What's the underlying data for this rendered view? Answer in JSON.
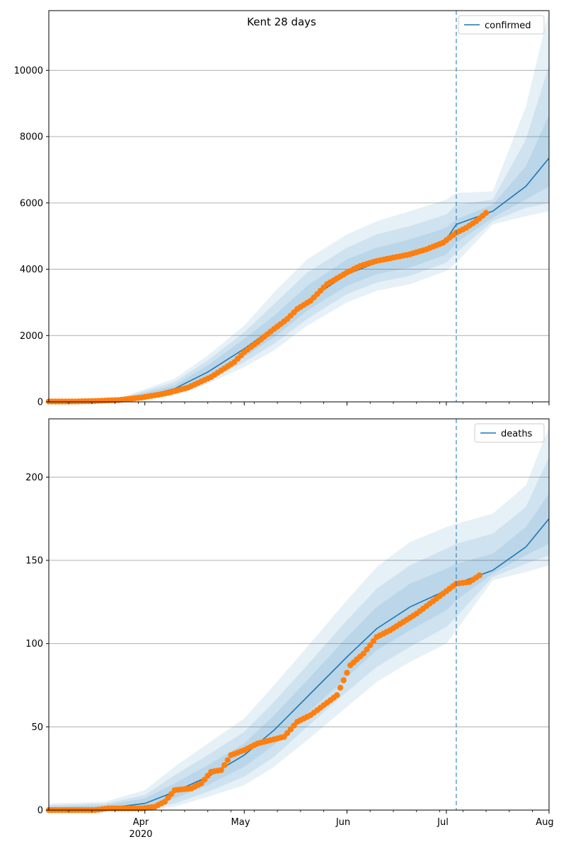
{
  "figure_title": "Kent 28 days",
  "colors": {
    "fit": "#1f77b4",
    "observed": "#ff7f0e",
    "band": "#1f77b4",
    "grid": "#b0b0b0",
    "forecast_line": "#1f77b4"
  },
  "x_axis": {
    "tick_labels": [
      "Apr",
      "May",
      "Jun",
      "Jul",
      "Aug"
    ],
    "year_label": "2020",
    "range": [
      "2020-03-03",
      "2020-08-01"
    ]
  },
  "forecast_start": "2020-07-04",
  "chart_data": [
    {
      "type": "line",
      "title": "Kent 28 days",
      "legend": "confirmed",
      "legend_position": "top-right",
      "grid": "horizontal",
      "ylim": [
        0,
        11800
      ],
      "yticks": [
        0,
        2000,
        4000,
        6000,
        8000,
        10000
      ],
      "ytick_labels": [
        "0",
        "2000",
        "4000",
        "6000",
        "8000",
        "10000"
      ],
      "fit": {
        "x": [
          "2020-03-03",
          "2020-03-15",
          "2020-03-25",
          "2020-04-01",
          "2020-04-10",
          "2020-04-20",
          "2020-05-01",
          "2020-05-10",
          "2020-05-20",
          "2020-06-01",
          "2020-06-10",
          "2020-06-20",
          "2020-07-01",
          "2020-07-04",
          "2020-07-15",
          "2020-07-25",
          "2020-08-01"
        ],
        "y": [
          10,
          20,
          70,
          170,
          400,
          900,
          1600,
          2250,
          3050,
          3850,
          4200,
          4450,
          4900,
          5350,
          5750,
          6500,
          7350
        ]
      },
      "bands": [
        {
          "x": [
            "2020-03-03",
            "2020-03-25",
            "2020-04-10",
            "2020-04-20",
            "2020-05-01",
            "2020-05-10",
            "2020-05-20",
            "2020-06-01",
            "2020-06-10",
            "2020-06-20",
            "2020-07-01",
            "2020-07-04",
            "2020-07-15",
            "2020-07-25",
            "2020-08-01"
          ],
          "low": [
            0,
            30,
            200,
            550,
            1050,
            1550,
            2300,
            3000,
            3350,
            3550,
            3950,
            4200,
            5350,
            5600,
            5750
          ],
          "high": [
            30,
            140,
            700,
            1400,
            2300,
            3300,
            4300,
            5050,
            5450,
            5750,
            6100,
            6300,
            6350,
            8900,
            11800
          ]
        },
        {
          "x": [
            "2020-03-03",
            "2020-03-25",
            "2020-04-10",
            "2020-04-20",
            "2020-05-01",
            "2020-05-10",
            "2020-05-20",
            "2020-06-01",
            "2020-06-10",
            "2020-06-20",
            "2020-07-01",
            "2020-07-04",
            "2020-07-15",
            "2020-07-25",
            "2020-08-01"
          ],
          "low": [
            0,
            40,
            260,
            650,
            1200,
            1750,
            2500,
            3250,
            3600,
            3800,
            4200,
            4500,
            5450,
            5850,
            6000
          ],
          "high": [
            25,
            120,
            600,
            1250,
            2100,
            2950,
            3900,
            4650,
            5050,
            5300,
            5650,
            5950,
            6100,
            7900,
            10150
          ]
        },
        {
          "x": [
            "2020-03-03",
            "2020-03-25",
            "2020-04-10",
            "2020-04-20",
            "2020-05-01",
            "2020-05-10",
            "2020-05-20",
            "2020-06-01",
            "2020-06-10",
            "2020-06-20",
            "2020-07-01",
            "2020-07-04",
            "2020-07-15",
            "2020-07-25",
            "2020-08-01"
          ],
          "low": [
            2,
            50,
            320,
            750,
            1350,
            1950,
            2750,
            3500,
            3850,
            4050,
            4450,
            4800,
            5550,
            6100,
            6500
          ],
          "high": [
            20,
            100,
            500,
            1100,
            1900,
            2600,
            3500,
            4300,
            4650,
            4900,
            5250,
            5500,
            5950,
            7100,
            8650
          ]
        }
      ],
      "observed": {
        "x": [
          "2020-03-03",
          "2020-03-10",
          "2020-03-17",
          "2020-03-24",
          "2020-03-31",
          "2020-04-07",
          "2020-04-14",
          "2020-04-21",
          "2020-04-28",
          "2020-05-01",
          "2020-05-05",
          "2020-05-10",
          "2020-05-14",
          "2020-05-17",
          "2020-05-21",
          "2020-05-26",
          "2020-06-01",
          "2020-06-05",
          "2020-06-10",
          "2020-06-15",
          "2020-06-20",
          "2020-06-25",
          "2020-06-30",
          "2020-07-04",
          "2020-07-07",
          "2020-07-10",
          "2020-07-13"
        ],
        "y": [
          10,
          12,
          25,
          55,
          130,
          250,
          430,
          750,
          1200,
          1500,
          1800,
          2200,
          2500,
          2800,
          3050,
          3550,
          3900,
          4100,
          4250,
          4350,
          4450,
          4600,
          4800,
          5100,
          5250,
          5450,
          5700
        ]
      }
    },
    {
      "type": "line",
      "title": "",
      "legend": "deaths",
      "legend_position": "top-right",
      "grid": "horizontal",
      "ylim": [
        0,
        235
      ],
      "yticks": [
        0,
        50,
        100,
        150,
        200
      ],
      "ytick_labels": [
        "0",
        "50",
        "100",
        "150",
        "200"
      ],
      "fit": {
        "x": [
          "2020-03-03",
          "2020-03-20",
          "2020-04-01",
          "2020-04-10",
          "2020-04-20",
          "2020-05-01",
          "2020-05-10",
          "2020-05-20",
          "2020-06-01",
          "2020-06-10",
          "2020-06-20",
          "2020-07-01",
          "2020-07-04",
          "2020-07-15",
          "2020-07-25",
          "2020-08-01"
        ],
        "y": [
          0,
          1,
          4,
          11,
          20,
          33,
          48,
          68,
          92,
          109,
          122,
          132,
          136,
          144,
          158,
          175
        ]
      },
      "bands": [
        {
          "x": [
            "2020-03-03",
            "2020-03-20",
            "2020-04-01",
            "2020-04-10",
            "2020-04-20",
            "2020-05-01",
            "2020-05-10",
            "2020-05-20",
            "2020-06-01",
            "2020-06-10",
            "2020-06-20",
            "2020-07-01",
            "2020-07-04",
            "2020-07-15",
            "2020-07-25",
            "2020-08-01"
          ],
          "low": [
            0,
            0,
            0,
            2,
            8,
            15,
            26,
            42,
            62,
            77,
            89,
            100,
            108,
            138,
            143,
            147
          ],
          "high": [
            4,
            5,
            12,
            26,
            40,
            55,
            75,
            98,
            126,
            146,
            161,
            170,
            172,
            178,
            195,
            230
          ]
        },
        {
          "x": [
            "2020-03-03",
            "2020-03-20",
            "2020-04-01",
            "2020-04-10",
            "2020-04-20",
            "2020-05-01",
            "2020-05-10",
            "2020-05-20",
            "2020-06-01",
            "2020-06-10",
            "2020-06-20",
            "2020-07-01",
            "2020-07-04",
            "2020-07-15",
            "2020-07-25",
            "2020-08-01"
          ],
          "low": [
            0,
            0,
            1,
            4,
            11,
            20,
            32,
            50,
            71,
            86,
            98,
            110,
            116,
            140,
            148,
            153
          ],
          "high": [
            3,
            4,
            9,
            21,
            33,
            47,
            65,
            87,
            114,
            133,
            147,
            157,
            160,
            166,
            182,
            212
          ]
        },
        {
          "x": [
            "2020-03-03",
            "2020-03-20",
            "2020-04-01",
            "2020-04-10",
            "2020-04-20",
            "2020-05-01",
            "2020-05-10",
            "2020-05-20",
            "2020-06-01",
            "2020-06-10",
            "2020-06-20",
            "2020-07-01",
            "2020-07-04",
            "2020-07-15",
            "2020-07-25",
            "2020-08-01"
          ],
          "low": [
            0,
            0,
            2,
            7,
            15,
            26,
            39,
            58,
            80,
            96,
            108,
            120,
            126,
            142,
            153,
            160
          ],
          "high": [
            2,
            3,
            7,
            16,
            27,
            40,
            57,
            78,
            104,
            122,
            136,
            145,
            148,
            154,
            170,
            190
          ]
        }
      ],
      "observed": {
        "x": [
          "2020-03-03",
          "2020-03-10",
          "2020-03-17",
          "2020-03-21",
          "2020-03-26",
          "2020-03-31",
          "2020-04-04",
          "2020-04-07",
          "2020-04-10",
          "2020-04-15",
          "2020-04-18",
          "2020-04-21",
          "2020-04-24",
          "2020-04-27",
          "2020-05-01",
          "2020-05-05",
          "2020-05-09",
          "2020-05-13",
          "2020-05-17",
          "2020-05-21",
          "2020-05-25",
          "2020-05-29",
          "2020-06-02",
          "2020-06-06",
          "2020-06-10",
          "2020-06-14",
          "2020-06-18",
          "2020-06-22",
          "2020-06-26",
          "2020-06-30",
          "2020-07-04",
          "2020-07-08",
          "2020-07-11"
        ],
        "y": [
          0,
          0,
          0,
          1,
          1,
          1,
          2,
          5,
          12,
          13,
          16,
          23,
          24,
          33,
          36,
          40,
          42,
          44,
          53,
          57,
          63,
          69,
          87,
          94,
          104,
          108,
          113,
          118,
          124,
          130,
          136,
          137,
          141
        ]
      }
    }
  ]
}
